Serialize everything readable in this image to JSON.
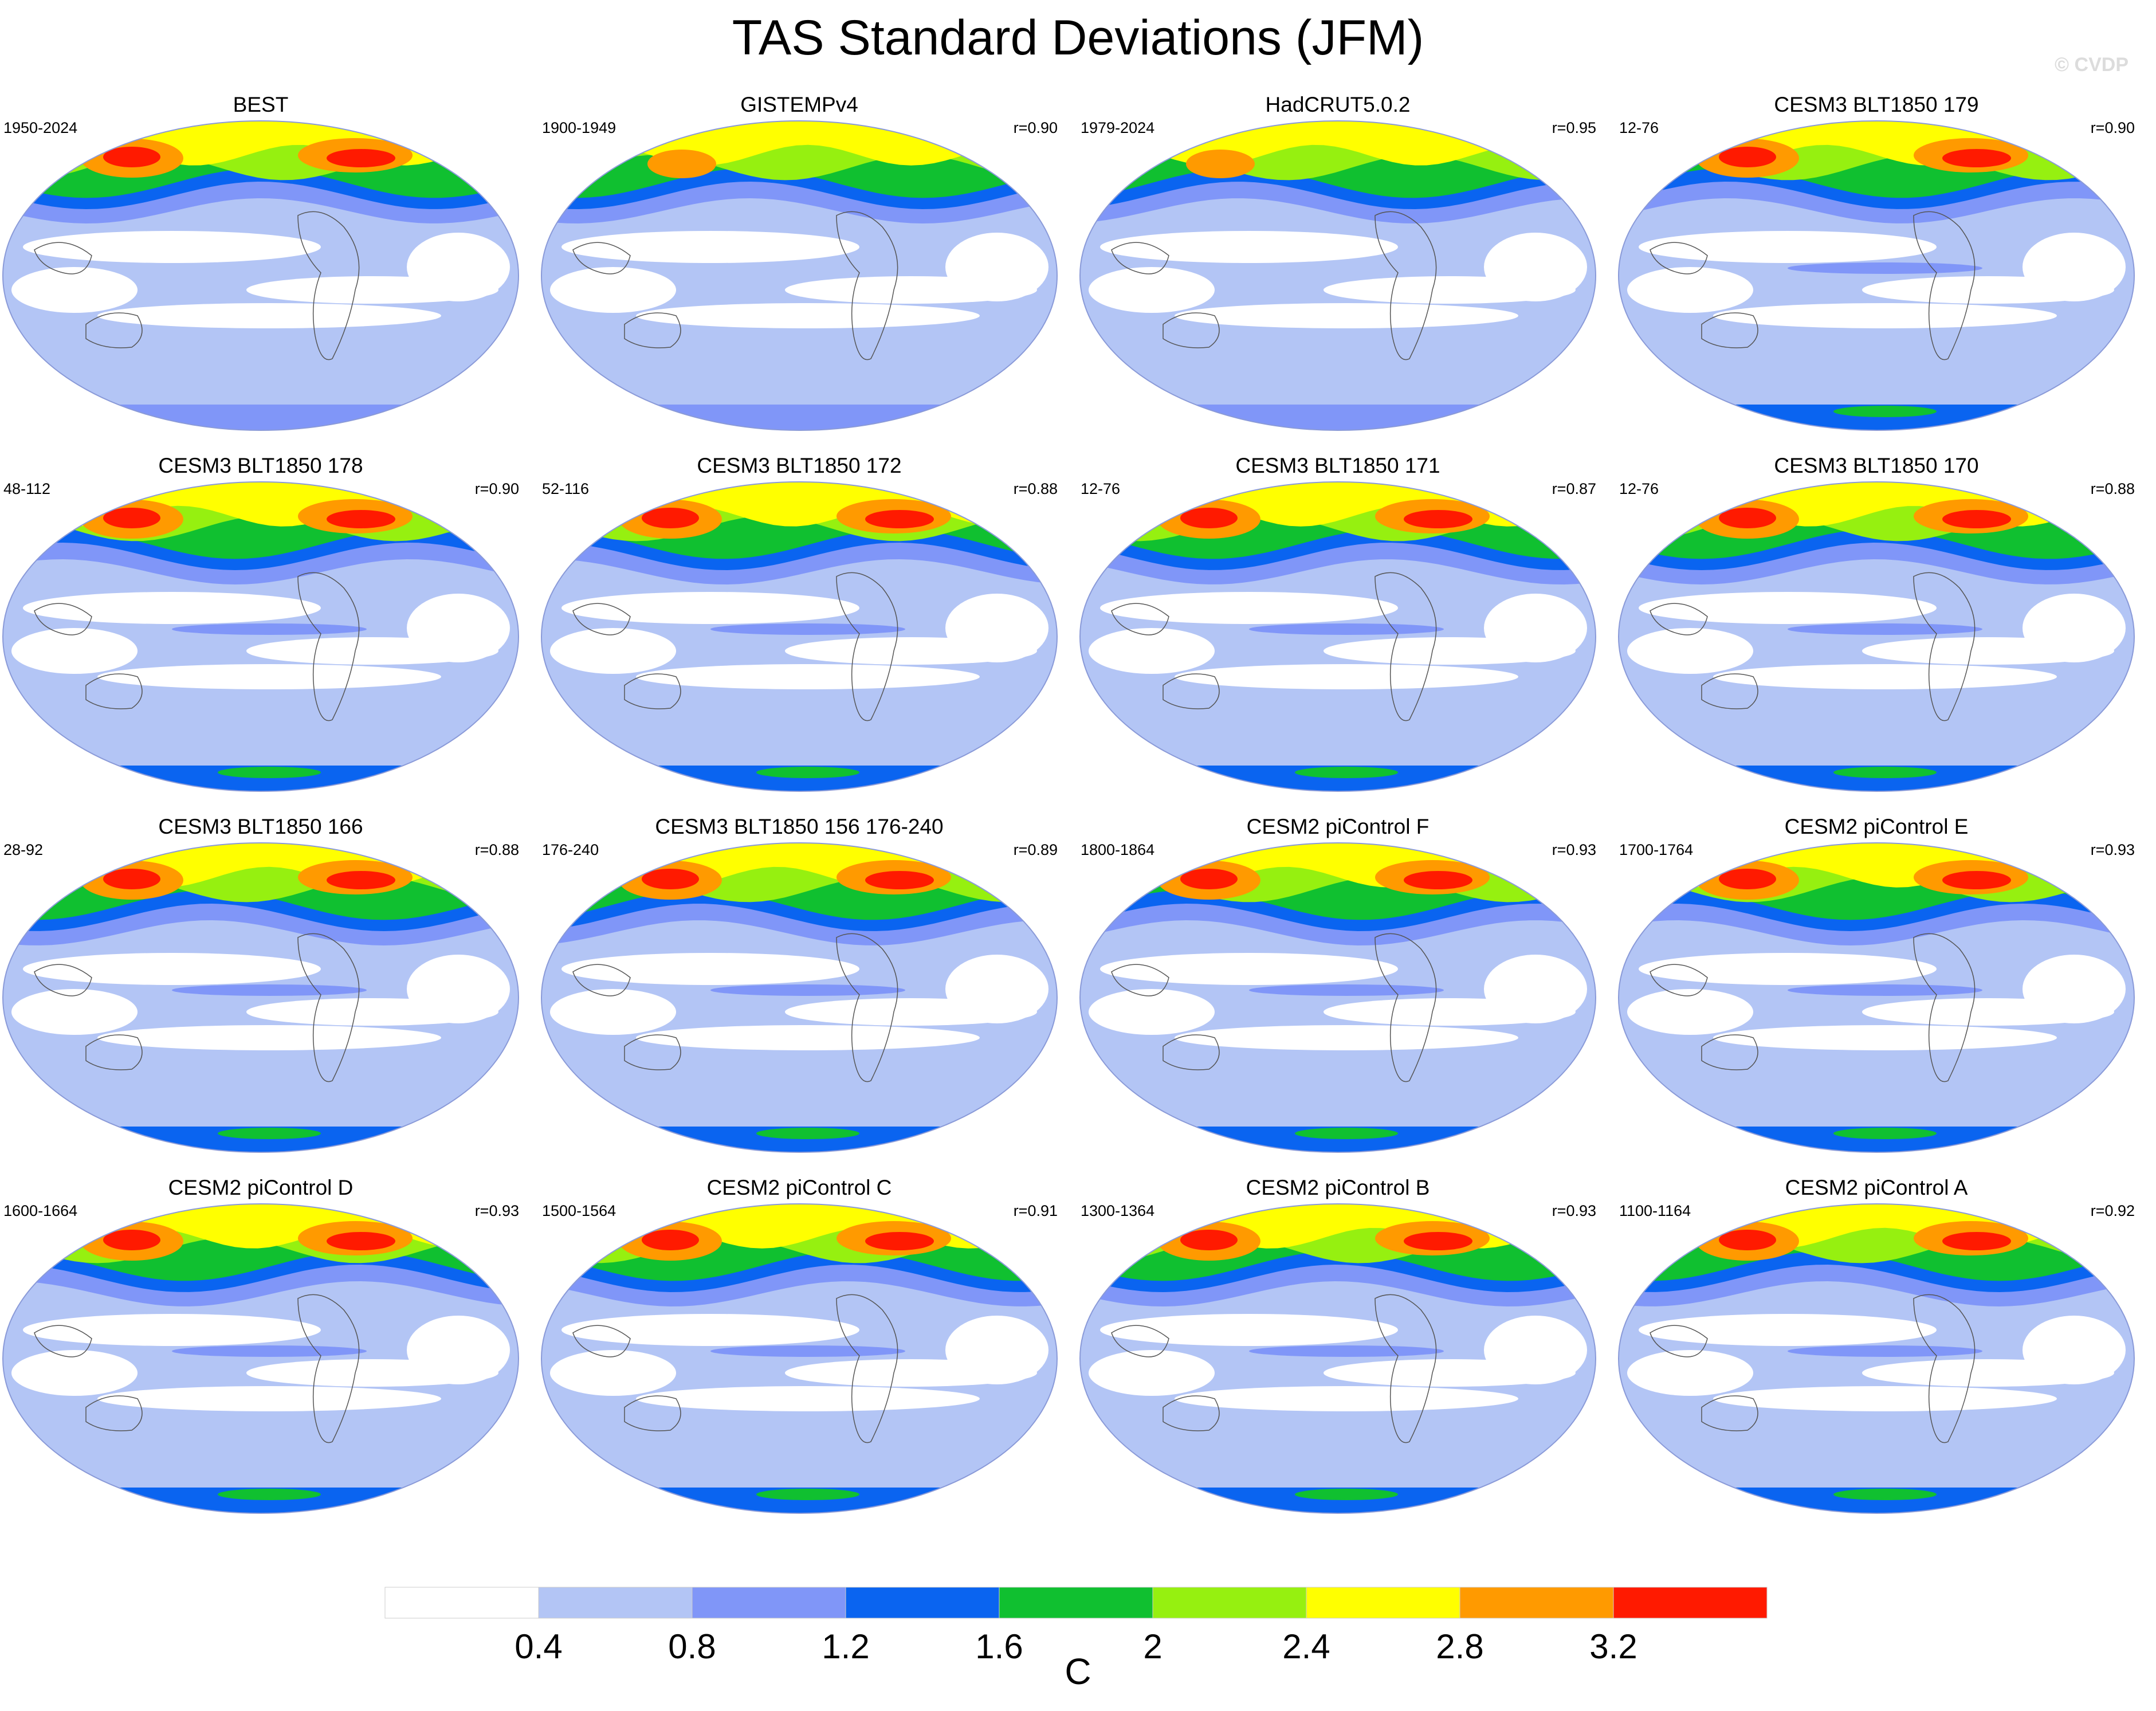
{
  "title": "TAS Standard Deviations (JFM)",
  "watermark": "© CVDP",
  "colors": {
    "levels": [
      "#ffffff",
      "#b3c5f5",
      "#8096f8",
      "#0a64f0",
      "#10c030",
      "#96f010",
      "#ffff00",
      "#ff9a00",
      "#ff1a00"
    ],
    "map_edge": "#8a9ad8",
    "coast": "#555555"
  },
  "chart_data": {
    "type": "map-grid",
    "variable": "TAS",
    "projection": "robinson",
    "panels": [
      {
        "title": "BEST",
        "period": "1950-2024",
        "corr": ""
      },
      {
        "title": "GISTEMPv4",
        "period": "1900-1949",
        "corr": "r=0.90"
      },
      {
        "title": "HadCRUT5.0.2",
        "period": "1979-2024",
        "corr": "r=0.95"
      },
      {
        "title": "CESM3 BLT1850 179",
        "period": "12-76",
        "corr": "r=0.90"
      },
      {
        "title": "CESM3 BLT1850 178",
        "period": "48-112",
        "corr": "r=0.90"
      },
      {
        "title": "CESM3 BLT1850 172",
        "period": "52-116",
        "corr": "r=0.88"
      },
      {
        "title": "CESM3 BLT1850 171",
        "period": "12-76",
        "corr": "r=0.87"
      },
      {
        "title": "CESM3 BLT1850 170",
        "period": "12-76",
        "corr": "r=0.88"
      },
      {
        "title": "CESM3 BLT1850 166",
        "period": "28-92",
        "corr": "r=0.88"
      },
      {
        "title": "CESM3 BLT1850 156 176-240",
        "period": "176-240",
        "corr": "r=0.89"
      },
      {
        "title": "CESM2 piControl F",
        "period": "1800-1864",
        "corr": "r=0.93"
      },
      {
        "title": "CESM2 piControl E",
        "period": "1700-1764",
        "corr": "r=0.93"
      },
      {
        "title": "CESM2 piControl D",
        "period": "1600-1664",
        "corr": "r=0.93"
      },
      {
        "title": "CESM2 piControl C",
        "period": "1500-1564",
        "corr": "r=0.91"
      },
      {
        "title": "CESM2 piControl B",
        "period": "1300-1364",
        "corr": "r=0.93"
      },
      {
        "title": "CESM2 piControl A",
        "period": "1100-1164",
        "corr": "r=0.92"
      }
    ],
    "colorbar": {
      "ticks": [
        "0.4",
        "0.8",
        "1.2",
        "1.6",
        "2",
        "2.4",
        "2.8",
        "3.2"
      ],
      "unit": "C"
    }
  }
}
